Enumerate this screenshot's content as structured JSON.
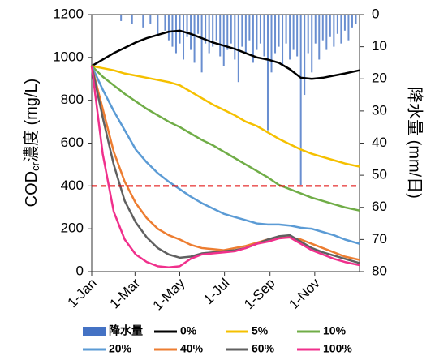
{
  "chart_data": {
    "type": "line",
    "y_label": {
      "main": "COD",
      "sub": "cr",
      "rest": "濃度 (mg/L)"
    },
    "y2_label": "降水量 (mm/日)",
    "x": [
      0,
      15,
      30,
      45,
      60,
      75,
      90,
      105,
      120,
      135,
      150,
      165,
      180,
      195,
      210,
      225,
      240,
      255,
      270,
      285,
      300,
      315,
      330,
      345,
      365
    ],
    "xlim": [
      0,
      365
    ],
    "xticks": [
      {
        "value": 0,
        "label": "1-Jan"
      },
      {
        "value": 59,
        "label": "1-Mar"
      },
      {
        "value": 120,
        "label": "1-May"
      },
      {
        "value": 181,
        "label": "1-Jul"
      },
      {
        "value": 243,
        "label": "1-Sep"
      },
      {
        "value": 304,
        "label": "1-Nov"
      }
    ],
    "ylim": [
      0,
      1200
    ],
    "yticks": [
      0,
      200,
      400,
      600,
      800,
      1000,
      1200
    ],
    "y2lim": [
      0,
      80
    ],
    "y2ticks": [
      0,
      10,
      20,
      30,
      40,
      50,
      60,
      70,
      80
    ],
    "y2_inverted": true,
    "reference_line": {
      "value": 400,
      "color": "#e00000"
    },
    "series": [
      {
        "name": "降水量",
        "type": "bar",
        "axis": "y2",
        "color": "#4472c4",
        "x": [
          40,
          55,
          70,
          80,
          90,
          100,
          105,
          110,
          115,
          120,
          125,
          130,
          135,
          140,
          145,
          150,
          155,
          160,
          165,
          170,
          175,
          180,
          185,
          190,
          195,
          200,
          205,
          210,
          215,
          220,
          225,
          230,
          235,
          240,
          245,
          250,
          255,
          260,
          265,
          270,
          275,
          280,
          285,
          290,
          295,
          300,
          305,
          310,
          315,
          320,
          325,
          330,
          335,
          340,
          345,
          350,
          355,
          360
        ],
        "values": [
          2,
          3,
          4,
          3,
          6,
          5,
          8,
          10,
          12,
          9,
          14,
          7,
          11,
          15,
          6,
          18,
          9,
          12,
          10,
          8,
          13,
          16,
          11,
          9,
          14,
          21,
          10,
          12,
          8,
          15,
          11,
          9,
          13,
          36,
          18,
          12,
          10,
          16,
          9,
          14,
          11,
          13,
          53,
          25,
          12,
          18,
          9,
          14,
          8,
          11,
          7,
          10,
          6,
          9,
          5,
          8,
          4,
          3
        ]
      },
      {
        "name": "0%",
        "color": "#000000",
        "values": [
          960,
          990,
          1020,
          1045,
          1070,
          1090,
          1105,
          1120,
          1125,
          1110,
          1090,
          1070,
          1055,
          1040,
          1020,
          1000,
          990,
          975,
          945,
          905,
          900,
          905,
          915,
          925,
          940
        ]
      },
      {
        "name": "5%",
        "color": "#f5c000",
        "values": [
          960,
          950,
          940,
          925,
          915,
          905,
          895,
          885,
          870,
          840,
          810,
          780,
          755,
          730,
          700,
          680,
          650,
          620,
          595,
          570,
          550,
          535,
          520,
          505,
          490
        ]
      },
      {
        "name": "10%",
        "color": "#70ad47",
        "values": [
          960,
          910,
          870,
          830,
          795,
          760,
          730,
          700,
          675,
          645,
          615,
          590,
          560,
          530,
          500,
          470,
          440,
          405,
          385,
          365,
          345,
          330,
          315,
          300,
          285
        ]
      },
      {
        "name": "20%",
        "color": "#5b9bd5",
        "values": [
          960,
          850,
          750,
          660,
          570,
          510,
          460,
          420,
          385,
          350,
          320,
          295,
          270,
          255,
          240,
          225,
          220,
          220,
          215,
          205,
          200,
          185,
          170,
          150,
          130
        ]
      },
      {
        "name": "40%",
        "color": "#ed7d31",
        "values": [
          960,
          760,
          560,
          420,
          320,
          250,
          200,
          170,
          150,
          125,
          110,
          105,
          100,
          110,
          120,
          135,
          150,
          158,
          160,
          150,
          130,
          110,
          90,
          70,
          55
        ]
      },
      {
        "name": "60%",
        "color": "#606060",
        "values": [
          960,
          720,
          500,
          330,
          230,
          160,
          110,
          80,
          65,
          70,
          85,
          90,
          95,
          100,
          110,
          130,
          150,
          165,
          170,
          140,
          110,
          90,
          75,
          60,
          40
        ]
      },
      {
        "name": "100%",
        "color": "#f0308c",
        "values": [
          960,
          550,
          280,
          150,
          80,
          45,
          25,
          20,
          25,
          60,
          80,
          85,
          90,
          95,
          110,
          130,
          140,
          155,
          160,
          130,
          100,
          80,
          60,
          45,
          30
        ]
      }
    ]
  }
}
